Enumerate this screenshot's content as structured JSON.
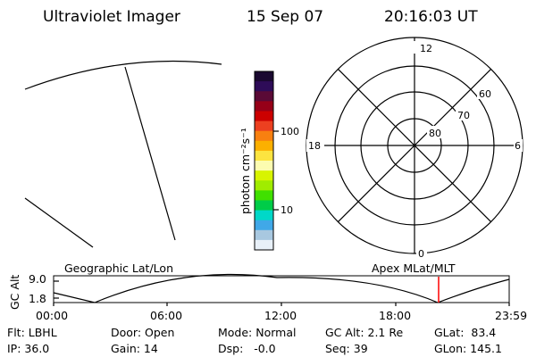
{
  "header": {
    "instrument": "Ultraviolet Imager",
    "date": "15 Sep 07",
    "time": "20:16:03 UT"
  },
  "colorbar": {
    "unit_label": "photon cm⁻²s⁻¹",
    "tick_labels": [
      "100",
      "10"
    ],
    "colors": [
      "#1a0830",
      "#2e0c58",
      "#5a0a36",
      "#960018",
      "#cc0000",
      "#ec4020",
      "#f88010",
      "#fcb000",
      "#fce440",
      "#fcfcb0",
      "#d8f400",
      "#a0ec00",
      "#40e000",
      "#00cc48",
      "#00d8c8",
      "#40a8e8",
      "#a8c8e0",
      "#e8f0f8"
    ]
  },
  "polar": {
    "mlt_labels": {
      "top": "12",
      "left": "18",
      "right": "6",
      "bottom": "0"
    },
    "lat_labels": [
      "60",
      "70",
      "80"
    ]
  },
  "timeline": {
    "y_title": "GC Alt",
    "y_ticks": [
      "9.0",
      "1.8"
    ],
    "left_caption": "Geographic Lat/Lon",
    "right_caption": "Apex MLat/MLT",
    "x_ticks": [
      "00:00",
      "06:00",
      "12:00",
      "18:00",
      "23:59"
    ],
    "marker_color": "#ff0000"
  },
  "status": {
    "flt": "Flt: LBHL",
    "ip": "IP: 36.0",
    "door": "Door: Open",
    "gain": "Gain: 14",
    "mode": "Mode: Normal",
    "dsp": "Dsp:   -0.0",
    "gc_alt": "GC Alt: 2.1 Re",
    "seq": "Seq: 39",
    "glat": "GLat:  83.4",
    "glon": "GLon: 145.1"
  }
}
